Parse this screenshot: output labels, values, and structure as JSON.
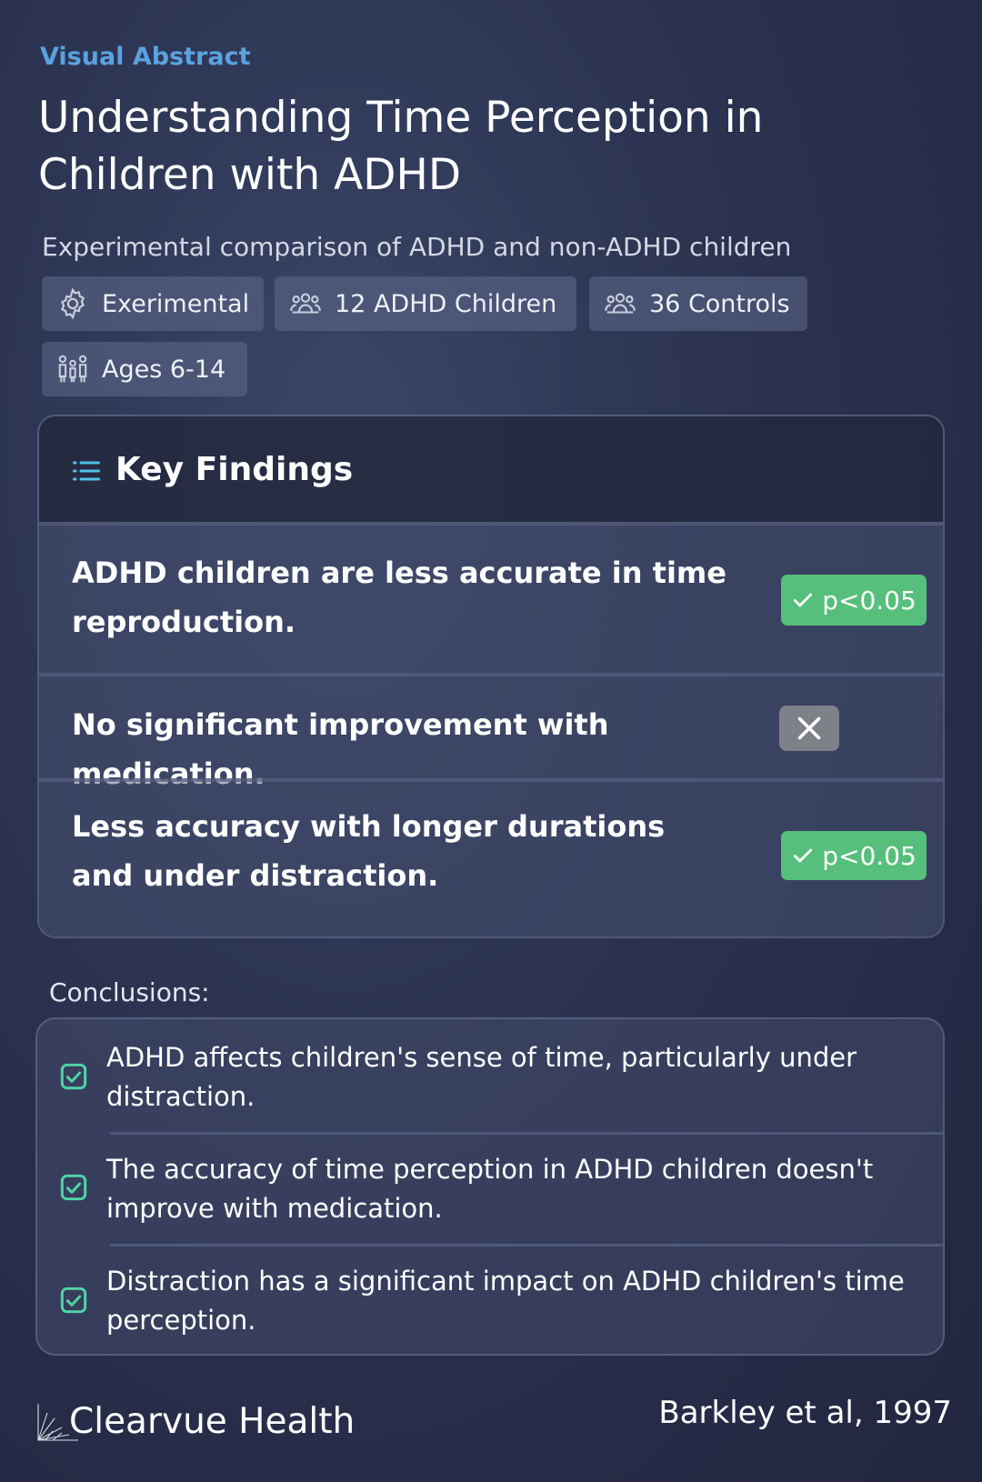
{
  "header": {
    "eyebrow": "Visual Abstract",
    "title": "Understanding Time Perception in Children with ADHD",
    "subtitle": "Experimental comparison of ADHD and non-ADHD children"
  },
  "chips": [
    {
      "icon": "gear-icon",
      "label": "Exerimental"
    },
    {
      "icon": "group-icon",
      "label": "12 ADHD Children"
    },
    {
      "icon": "group-icon",
      "label": "36 Controls"
    },
    {
      "icon": "family-icon",
      "label": "Ages 6-14"
    }
  ],
  "findings": {
    "title": "Key Findings",
    "icon": "list-icon",
    "items": [
      {
        "text": "ADHD children are less accurate in time reproduction.",
        "badge": "p<0.05",
        "significant": true
      },
      {
        "text": "No significant improvement with medication.",
        "badge": "",
        "significant": false
      },
      {
        "text": "Less accuracy with longer durations and under distraction.",
        "badge": "p<0.05",
        "significant": true
      }
    ]
  },
  "conclusions": {
    "label": "Conclusions:",
    "items": [
      "ADHD affects children's sense of time, particularly under distraction.",
      "The accuracy of time perception in ADHD children doesn't improve with medication.",
      "Distraction has a significant impact on ADHD children's time perception."
    ]
  },
  "footer": {
    "brand": "Clearvue Health",
    "citation": "Barkley et al, 1997"
  },
  "colors": {
    "accent": "#5aa2e0",
    "significant": "#56bf7b",
    "check": "#4fd6a6",
    "not_significant": "#7f818a"
  }
}
